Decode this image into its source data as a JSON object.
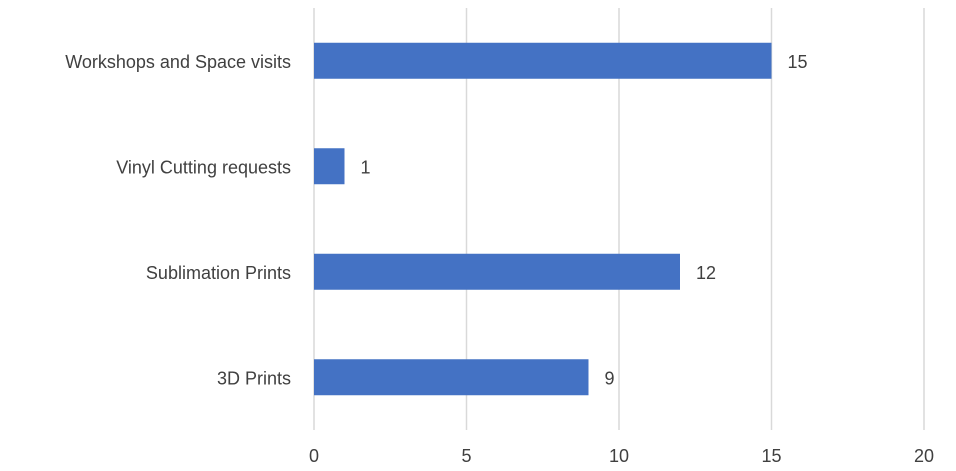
{
  "chart_data": {
    "type": "bar",
    "orientation": "horizontal",
    "title": "",
    "xlabel": "",
    "ylabel": "",
    "categories": [
      "Workshops and Space visits",
      "Vinyl Cutting requests",
      "Sublimation Prints",
      "3D Prints"
    ],
    "values": [
      15,
      1,
      12,
      9
    ],
    "xlim": [
      0,
      20
    ],
    "xticks": [
      0,
      5,
      10,
      15,
      20
    ],
    "grid": "vertical",
    "legend": "none",
    "data_labels": true,
    "colors": {
      "bar": "#4472C4",
      "grid": "#D9D9D9",
      "text": "#404040"
    }
  }
}
